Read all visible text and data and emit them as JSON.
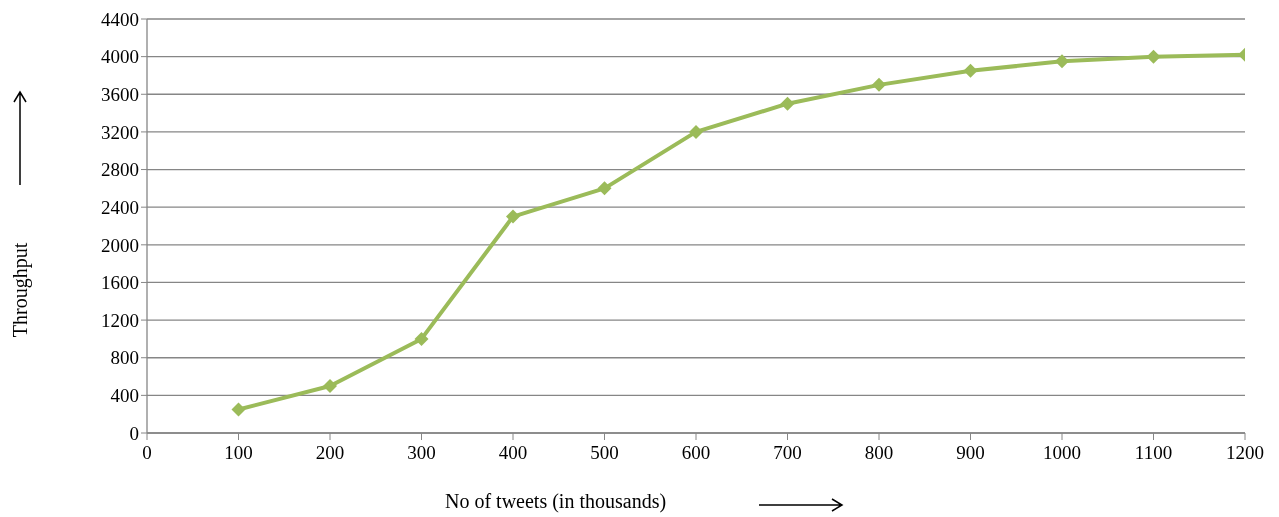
{
  "chart_data": {
    "type": "line",
    "xlabel": "No of tweets (in thousands)",
    "ylabel": "Throughput",
    "x": [
      100,
      200,
      300,
      400,
      500,
      600,
      700,
      800,
      900,
      1000,
      1100,
      1200
    ],
    "series": [
      {
        "color": "#9bbb59",
        "values": [
          250,
          500,
          1000,
          2300,
          2600,
          3200,
          3500,
          3700,
          3850,
          3950,
          4000,
          4020
        ]
      }
    ],
    "xlim": [
      0,
      1200
    ],
    "xticks": [
      0,
      100,
      200,
      300,
      400,
      500,
      600,
      700,
      800,
      900,
      1000,
      1100,
      1200
    ],
    "ylim": [
      0,
      4400
    ],
    "yticks": [
      0,
      400,
      800,
      1200,
      1600,
      2000,
      2400,
      2800,
      3200,
      3600,
      4000,
      4400
    ],
    "grid": "y",
    "marker": "diamond",
    "line_style": "solid",
    "legend": false
  }
}
